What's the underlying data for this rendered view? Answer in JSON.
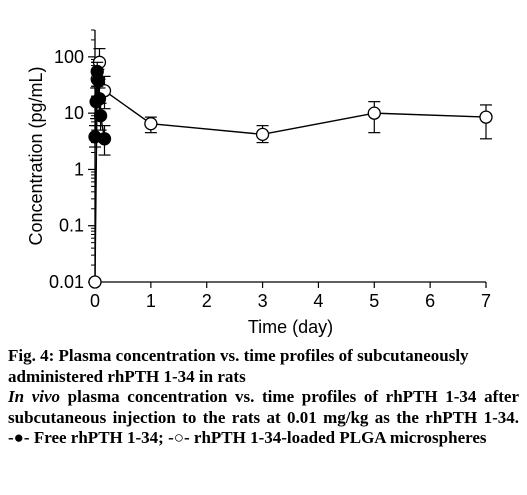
{
  "chart_data": {
    "type": "scatter",
    "xlabel": "Time (day)",
    "ylabel": "Concentration (pg/mL)",
    "xlim": [
      0,
      7
    ],
    "ylim": [
      0.01,
      300
    ],
    "y_scale": "log",
    "x_ticks": [
      "0",
      "1",
      "2",
      "3",
      "4",
      "5",
      "6",
      "7"
    ],
    "y_ticks": [
      {
        "value": 0.01,
        "label": "0.01"
      },
      {
        "value": 0.1,
        "label": "0.1"
      },
      {
        "value": 1,
        "label": "1"
      },
      {
        "value": 10,
        "label": "10"
      },
      {
        "value": 100,
        "label": "100"
      }
    ],
    "grid": false,
    "series": [
      {
        "marker": "filled-circle",
        "color": "#000000",
        "points": [
          {
            "x": 0.0,
            "y": 3.8,
            "err_lo": 2.5,
            "err_hi": 6.0
          },
          {
            "x": 0.02,
            "y": 16,
            "err_lo": 8,
            "err_hi": 28
          },
          {
            "x": 0.04,
            "y": 55,
            "err_lo": 30,
            "err_hi": 80
          },
          {
            "x": 0.06,
            "y": 38,
            "err_lo": 20,
            "err_hi": 60
          },
          {
            "x": 0.08,
            "y": 18,
            "err_lo": 10,
            "err_hi": 28
          },
          {
            "x": 0.1,
            "y": 9,
            "err_lo": 5,
            "err_hi": 15
          },
          {
            "x": 0.17,
            "y": 3.5,
            "err_lo": 1.8,
            "err_hi": 6
          }
        ]
      },
      {
        "marker": "open-circle",
        "color": "#000000",
        "points": [
          {
            "x": 0.0,
            "y": 0.01
          },
          {
            "x": 0.04,
            "y": 40,
            "err_lo": 20,
            "err_hi": 60
          },
          {
            "x": 0.08,
            "y": 80,
            "err_lo": 40,
            "err_hi": 140
          },
          {
            "x": 0.17,
            "y": 25,
            "err_lo": 12,
            "err_hi": 45
          },
          {
            "x": 1.0,
            "y": 6.5,
            "err_lo": 4.5,
            "err_hi": 8.5
          },
          {
            "x": 3.0,
            "y": 4.2,
            "err_lo": 3.0,
            "err_hi": 6.0
          },
          {
            "x": 5.0,
            "y": 10,
            "err_lo": 4.5,
            "err_hi": 16
          },
          {
            "x": 7.0,
            "y": 8.5,
            "err_lo": 3.5,
            "err_hi": 14
          }
        ]
      }
    ]
  },
  "caption": {
    "title_line1": "Fig. 4: Plasma concentration vs. time profiles of subcutaneously",
    "title_line2": "administered rhPTH 1-34 in rats",
    "italic_part": "In vivo",
    "description": " plasma concentration vs. time profiles of rhPTH 1-34 after subcutaneous injection to the rats at 0.01 mg/kg as the rhPTH 1-34. -●- Free rhPTH 1-34; -○- rhPTH 1-34-loaded PLGA microspheres"
  }
}
